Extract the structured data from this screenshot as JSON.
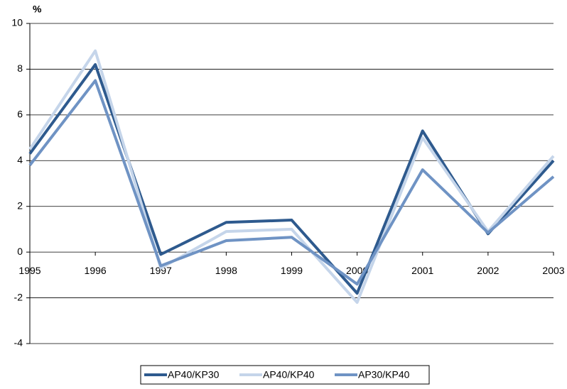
{
  "chart_data": {
    "type": "line",
    "y_label": "%",
    "categories": [
      "1995",
      "1996",
      "1997",
      "1998",
      "1999",
      "2000",
      "2001",
      "2002",
      "2003"
    ],
    "series": [
      {
        "name": "AP40/KP30",
        "color": "#2e5a8e",
        "values": [
          4.3,
          8.2,
          -0.1,
          1.3,
          1.4,
          -1.8,
          5.3,
          0.8,
          4.0
        ]
      },
      {
        "name": "AP40/KP40",
        "color": "#c5d5ea",
        "values": [
          4.5,
          8.8,
          -0.7,
          0.9,
          1.0,
          -2.2,
          5.0,
          0.9,
          4.2
        ]
      },
      {
        "name": "AP30/KP40",
        "color": "#6f93c4",
        "values": [
          3.8,
          7.5,
          -0.6,
          0.5,
          0.65,
          -1.4,
          3.6,
          0.85,
          3.3
        ]
      }
    ],
    "ylim": [
      -4,
      10
    ],
    "yticks": [
      -4,
      -2,
      0,
      2,
      4,
      6,
      8,
      10
    ],
    "grid": true,
    "legend": "bottom"
  }
}
